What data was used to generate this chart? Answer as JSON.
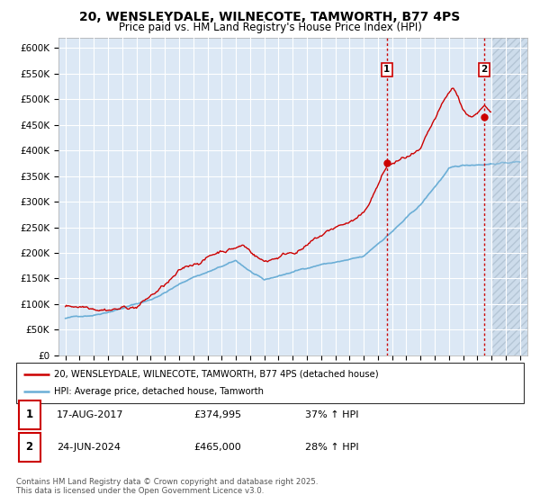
{
  "title": "20, WENSLEYDALE, WILNECOTE, TAMWORTH, B77 4PS",
  "subtitle": "Price paid vs. HM Land Registry's House Price Index (HPI)",
  "title_fontsize": 10,
  "subtitle_fontsize": 8.5,
  "ylim": [
    0,
    620000
  ],
  "yticks": [
    0,
    50000,
    100000,
    150000,
    200000,
    250000,
    300000,
    350000,
    400000,
    450000,
    500000,
    550000,
    600000
  ],
  "ytick_labels": [
    "£0",
    "£50K",
    "£100K",
    "£150K",
    "£200K",
    "£250K",
    "£300K",
    "£350K",
    "£400K",
    "£450K",
    "£500K",
    "£550K",
    "£600K"
  ],
  "hpi_color": "#6baed6",
  "price_color": "#cc0000",
  "marker1_date_x": 2017.63,
  "marker1_price": 374995,
  "marker2_date_x": 2024.48,
  "marker2_price": 465000,
  "vline_color": "#cc0000",
  "bg_color": "#dce8f5",
  "future_hatch_color": "#b0c4d8",
  "grid_color": "#ffffff",
  "legend_label1": "20, WENSLEYDALE, WILNECOTE, TAMWORTH, B77 4PS (detached house)",
  "legend_label2": "HPI: Average price, detached house, Tamworth",
  "annotation1_label": "1",
  "annotation2_label": "2",
  "table_row1": [
    "1",
    "17-AUG-2017",
    "£374,995",
    "37% ↑ HPI"
  ],
  "table_row2": [
    "2",
    "24-JUN-2024",
    "£465,000",
    "28% ↑ HPI"
  ],
  "footnote": "Contains HM Land Registry data © Crown copyright and database right 2025.\nThis data is licensed under the Open Government Licence v3.0.",
  "xlim": [
    1994.5,
    2027.5
  ],
  "future_start": 2025.0,
  "xtick_years": [
    1995,
    1996,
    1997,
    1998,
    1999,
    2000,
    2001,
    2002,
    2003,
    2004,
    2005,
    2006,
    2007,
    2008,
    2009,
    2010,
    2011,
    2012,
    2013,
    2014,
    2015,
    2016,
    2017,
    2018,
    2019,
    2020,
    2021,
    2022,
    2023,
    2024,
    2025,
    2026,
    2027
  ]
}
